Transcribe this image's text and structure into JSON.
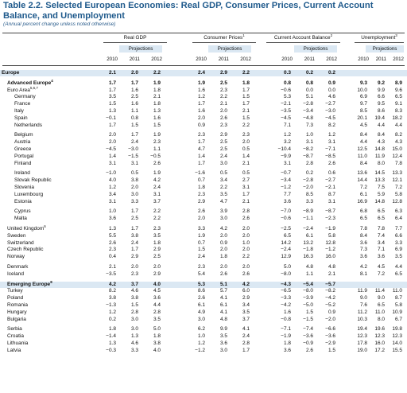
{
  "title": "Table 2.2. Selected European Economies: Real GDP, Consumer Prices, Current Account Balance, and Unemployment",
  "subtitle": "(Annual percent change unless noted otherwise)",
  "groups": [
    {
      "label": "Real GDP",
      "sup": ""
    },
    {
      "label": "Consumer Prices",
      "sup": "1"
    },
    {
      "label": "Current Account Balance",
      "sup": "2"
    },
    {
      "label": "Unemployment",
      "sup": "3"
    }
  ],
  "projections_label": "Projections",
  "years": [
    "2010",
    "2011",
    "2012"
  ],
  "rows": [
    {
      "name": "Europe",
      "sup": "",
      "level": 0,
      "bold": true,
      "shade": true,
      "gap": 0,
      "v": [
        "2.1",
        "2.0",
        "2.2",
        "2.4",
        "2.9",
        "2.2",
        "0.3",
        "0.2",
        "0.2",
        "",
        "",
        ""
      ]
    },
    {
      "name": "Advanced Europe",
      "sup": "4",
      "level": 1,
      "bold": true,
      "shade": false,
      "gap": 4,
      "v": [
        "1.7",
        "1.7",
        "1.9",
        "1.9",
        "2.5",
        "1.8",
        "0.8",
        "0.8",
        "0.9",
        "9.3",
        "9.2",
        "8.9"
      ]
    },
    {
      "name": "Euro Area",
      "sup": "5,6,7",
      "level": 1,
      "bold": false,
      "shade": false,
      "gap": 0,
      "v": [
        "1.7",
        "1.6",
        "1.8",
        "1.6",
        "2.3",
        "1.7",
        "-0.6",
        "0.0",
        "0.0",
        "10.0",
        "9.9",
        "9.6"
      ]
    },
    {
      "name": "Germany",
      "sup": "",
      "level": 2,
      "bold": false,
      "shade": false,
      "gap": 0,
      "v": [
        "3.5",
        "2.5",
        "2.1",
        "1.2",
        "2.2",
        "1.5",
        "5.3",
        "5.1",
        "4.6",
        "6.9",
        "6.6",
        "6.5"
      ]
    },
    {
      "name": "France",
      "sup": "",
      "level": 2,
      "bold": false,
      "shade": false,
      "gap": 0,
      "v": [
        "1.5",
        "1.6",
        "1.8",
        "1.7",
        "2.1",
        "1.7",
        "-2.1",
        "-2.8",
        "-2.7",
        "9.7",
        "9.5",
        "9.1"
      ]
    },
    {
      "name": "Italy",
      "sup": "",
      "level": 2,
      "bold": false,
      "shade": false,
      "gap": 0,
      "v": [
        "1.3",
        "1.1",
        "1.3",
        "1.6",
        "2.0",
        "2.1",
        "-3.5",
        "-3.4",
        "-3.0",
        "8.5",
        "8.6",
        "8.3"
      ]
    },
    {
      "name": "Spain",
      "sup": "",
      "level": 2,
      "bold": false,
      "shade": false,
      "gap": 0,
      "v": [
        "-0.1",
        "0.8",
        "1.6",
        "2.0",
        "2.6",
        "1.5",
        "-4.5",
        "-4.8",
        "-4.5",
        "20.1",
        "19.4",
        "18.2"
      ]
    },
    {
      "name": "Netherlands",
      "sup": "",
      "level": 2,
      "bold": false,
      "shade": false,
      "gap": 0,
      "v": [
        "1.7",
        "1.5",
        "1.5",
        "0.9",
        "2.3",
        "2.2",
        "7.1",
        "7.3",
        "8.2",
        "4.5",
        "4.4",
        "4.4"
      ]
    },
    {
      "name": "Belgium",
      "sup": "",
      "level": 2,
      "bold": false,
      "shade": false,
      "gap": 4,
      "v": [
        "2.0",
        "1.7",
        "1.9",
        "2.3",
        "2.9",
        "2.3",
        "1.2",
        "1.0",
        "1.2",
        "8.4",
        "8.4",
        "8.2"
      ]
    },
    {
      "name": "Austria",
      "sup": "",
      "level": 2,
      "bold": false,
      "shade": false,
      "gap": 0,
      "v": [
        "2.0",
        "2.4",
        "2.3",
        "1.7",
        "2.5",
        "2.0",
        "3.2",
        "3.1",
        "3.1",
        "4.4",
        "4.3",
        "4.3"
      ]
    },
    {
      "name": "Greece",
      "sup": "",
      "level": 2,
      "bold": false,
      "shade": false,
      "gap": 0,
      "v": [
        "-4.5",
        "-3.0",
        "1.1",
        "4.7",
        "2.5",
        "0.5",
        "-10.4",
        "-8.2",
        "-7.1",
        "12.5",
        "14.8",
        "15.0"
      ]
    },
    {
      "name": "Portugal",
      "sup": "",
      "level": 2,
      "bold": false,
      "shade": false,
      "gap": 0,
      "v": [
        "1.4",
        "-1.5",
        "-0.5",
        "1.4",
        "2.4",
        "1.4",
        "-9.9",
        "-8.7",
        "-8.5",
        "11.0",
        "11.9",
        "12.4"
      ]
    },
    {
      "name": "Finland",
      "sup": "",
      "level": 2,
      "bold": false,
      "shade": false,
      "gap": 0,
      "v": [
        "3.1",
        "3.1",
        "2.6",
        "1.7",
        "3.0",
        "2.1",
        "3.1",
        "2.8",
        "2.6",
        "8.4",
        "8.0",
        "7.8"
      ]
    },
    {
      "name": "Ireland",
      "sup": "",
      "level": 2,
      "bold": false,
      "shade": false,
      "gap": 4,
      "v": [
        "-1.0",
        "0.5",
        "1.9",
        "-1.6",
        "0.5",
        "0.5",
        "-0.7",
        "0.2",
        "0.6",
        "13.6",
        "14.5",
        "13.3"
      ]
    },
    {
      "name": "Slovak Republic",
      "sup": "",
      "level": 2,
      "bold": false,
      "shade": false,
      "gap": 0,
      "v": [
        "4.0",
        "3.8",
        "4.2",
        "0.7",
        "3.4",
        "2.7",
        "-3.4",
        "-2.8",
        "-2.7",
        "14.4",
        "13.3",
        "12.1"
      ]
    },
    {
      "name": "Slovenia",
      "sup": "",
      "level": 2,
      "bold": false,
      "shade": false,
      "gap": 0,
      "v": [
        "1.2",
        "2.0",
        "2.4",
        "1.8",
        "2.2",
        "3.1",
        "-1.2",
        "-2.0",
        "-2.1",
        "7.2",
        "7.5",
        "7.2"
      ]
    },
    {
      "name": "Luxembourg",
      "sup": "",
      "level": 2,
      "bold": false,
      "shade": false,
      "gap": 0,
      "v": [
        "3.4",
        "3.0",
        "3.1",
        "2.3",
        "3.5",
        "1.7",
        "7.7",
        "8.5",
        "8.7",
        "6.1",
        "5.9",
        "5.8"
      ]
    },
    {
      "name": "Estonia",
      "sup": "",
      "level": 2,
      "bold": false,
      "shade": false,
      "gap": 0,
      "v": [
        "3.1",
        "3.3",
        "3.7",
        "2.9",
        "4.7",
        "2.1",
        "3.6",
        "3.3",
        "3.1",
        "16.9",
        "14.8",
        "12.8"
      ]
    },
    {
      "name": "Cyprus",
      "sup": "",
      "level": 2,
      "bold": false,
      "shade": false,
      "gap": 4,
      "v": [
        "1.0",
        "1.7",
        "2.2",
        "2.6",
        "3.9",
        "2.8",
        "-7.0",
        "-8.9",
        "-8.7",
        "6.8",
        "6.5",
        "6.3"
      ]
    },
    {
      "name": "Malta",
      "sup": "",
      "level": 2,
      "bold": false,
      "shade": false,
      "gap": 0,
      "v": [
        "3.6",
        "2.5",
        "2.2",
        "2.0",
        "3.0",
        "2.6",
        "-0.6",
        "-1.1",
        "-2.3",
        "6.5",
        "6.5",
        "6.4"
      ]
    },
    {
      "name": "United Kingdom",
      "sup": "6",
      "level": 1,
      "bold": false,
      "shade": false,
      "gap": 4,
      "v": [
        "1.3",
        "1.7",
        "2.3",
        "3.3",
        "4.2",
        "2.0",
        "-2.5",
        "-2.4",
        "-1.9",
        "7.8",
        "7.8",
        "7.7"
      ]
    },
    {
      "name": "Sweden",
      "sup": "",
      "level": 1,
      "bold": false,
      "shade": false,
      "gap": 0,
      "v": [
        "5.5",
        "3.8",
        "3.5",
        "1.9",
        "2.0",
        "2.0",
        "6.5",
        "6.1",
        "5.8",
        "8.4",
        "7.4",
        "6.6"
      ]
    },
    {
      "name": "Switzerland",
      "sup": "",
      "level": 1,
      "bold": false,
      "shade": false,
      "gap": 0,
      "v": [
        "2.6",
        "2.4",
        "1.8",
        "0.7",
        "0.9",
        "1.0",
        "14.2",
        "13.2",
        "12.8",
        "3.6",
        "3.4",
        "3.3"
      ]
    },
    {
      "name": "Czech Republic",
      "sup": "",
      "level": 1,
      "bold": false,
      "shade": false,
      "gap": 0,
      "v": [
        "2.3",
        "1.7",
        "2.9",
        "1.5",
        "2.0",
        "2.0",
        "-2.4",
        "-1.8",
        "-1.2",
        "7.3",
        "7.1",
        "6.9"
      ]
    },
    {
      "name": "Norway",
      "sup": "",
      "level": 1,
      "bold": false,
      "shade": false,
      "gap": 0,
      "v": [
        "0.4",
        "2.9",
        "2.5",
        "2.4",
        "1.8",
        "2.2",
        "12.9",
        "16.3",
        "16.0",
        "3.6",
        "3.6",
        "3.5"
      ]
    },
    {
      "name": "Denmark",
      "sup": "",
      "level": 1,
      "bold": false,
      "shade": false,
      "gap": 4,
      "v": [
        "2.1",
        "2.0",
        "2.0",
        "2.3",
        "2.0",
        "2.0",
        "5.0",
        "4.8",
        "4.8",
        "4.2",
        "4.5",
        "4.4"
      ]
    },
    {
      "name": "Iceland",
      "sup": "",
      "level": 1,
      "bold": false,
      "shade": false,
      "gap": 0,
      "v": [
        "-3.5",
        "2.3",
        "2.9",
        "5.4",
        "2.6",
        "2.6",
        "-8.0",
        "1.1",
        "2.1",
        "8.1",
        "7.2",
        "6.5"
      ]
    },
    {
      "name": "Emerging Europe",
      "sup": "8",
      "level": 1,
      "bold": true,
      "shade": true,
      "gap": 4,
      "v": [
        "4.2",
        "3.7",
        "4.0",
        "5.3",
        "5.1",
        "4.2",
        "-4.3",
        "-5.4",
        "-5.7",
        "",
        "",
        ""
      ]
    },
    {
      "name": "Turkey",
      "sup": "",
      "level": 1,
      "bold": false,
      "shade": false,
      "gap": 0,
      "v": [
        "8.2",
        "4.6",
        "4.5",
        "8.6",
        "5.7",
        "6.0",
        "-6.5",
        "-8.0",
        "-8.2",
        "11.9",
        "11.4",
        "11.0"
      ]
    },
    {
      "name": "Poland",
      "sup": "",
      "level": 1,
      "bold": false,
      "shade": false,
      "gap": 0,
      "v": [
        "3.8",
        "3.8",
        "3.6",
        "2.6",
        "4.1",
        "2.9",
        "-3.3",
        "-3.9",
        "-4.2",
        "9.0",
        "9.0",
        "8.7"
      ]
    },
    {
      "name": "Romania",
      "sup": "",
      "level": 1,
      "bold": false,
      "shade": false,
      "gap": 0,
      "v": [
        "-1.3",
        "1.5",
        "4.4",
        "6.1",
        "6.1",
        "3.4",
        "-4.2",
        "-5.0",
        "-5.2",
        "7.6",
        "6.5",
        "5.8"
      ]
    },
    {
      "name": "Hungary",
      "sup": "",
      "level": 1,
      "bold": false,
      "shade": false,
      "gap": 0,
      "v": [
        "1.2",
        "2.8",
        "2.8",
        "4.9",
        "4.1",
        "3.5",
        "1.6",
        "1.5",
        "0.9",
        "11.2",
        "11.0",
        "10.9"
      ]
    },
    {
      "name": "Bulgaria",
      "sup": "",
      "level": 1,
      "bold": false,
      "shade": false,
      "gap": 0,
      "v": [
        "0.2",
        "3.0",
        "3.5",
        "3.0",
        "4.8",
        "3.7",
        "-0.8",
        "-1.5",
        "-2.0",
        "10.3",
        "8.0",
        "6.7"
      ]
    },
    {
      "name": "Serbia",
      "sup": "",
      "level": 1,
      "bold": false,
      "shade": false,
      "gap": 4,
      "v": [
        "1.8",
        "3.0",
        "5.0",
        "6.2",
        "9.9",
        "4.1",
        "-7.1",
        "-7.4",
        "-6.6",
        "19.4",
        "19.6",
        "19.8"
      ]
    },
    {
      "name": "Croatia",
      "sup": "",
      "level": 1,
      "bold": false,
      "shade": false,
      "gap": 0,
      "v": [
        "-1.4",
        "1.3",
        "1.8",
        "1.0",
        "3.5",
        "2.4",
        "-1.9",
        "-3.6",
        "-3.6",
        "12.3",
        "12.3",
        "12.3"
      ]
    },
    {
      "name": "Lithuania",
      "sup": "",
      "level": 1,
      "bold": false,
      "shade": false,
      "gap": 0,
      "v": [
        "1.3",
        "4.6",
        "3.8",
        "1.2",
        "3.6",
        "2.8",
        "1.8",
        "-0.9",
        "-2.9",
        "17.8",
        "16.0",
        "14.0"
      ]
    },
    {
      "name": "Latvia",
      "sup": "",
      "level": 1,
      "bold": false,
      "shade": false,
      "gap": 0,
      "v": [
        "-0.3",
        "3.3",
        "4.0",
        "-1.2",
        "3.0",
        "1.7",
        "3.6",
        "2.6",
        "1.5",
        "19.0",
        "17.2",
        "15.5"
      ]
    }
  ]
}
